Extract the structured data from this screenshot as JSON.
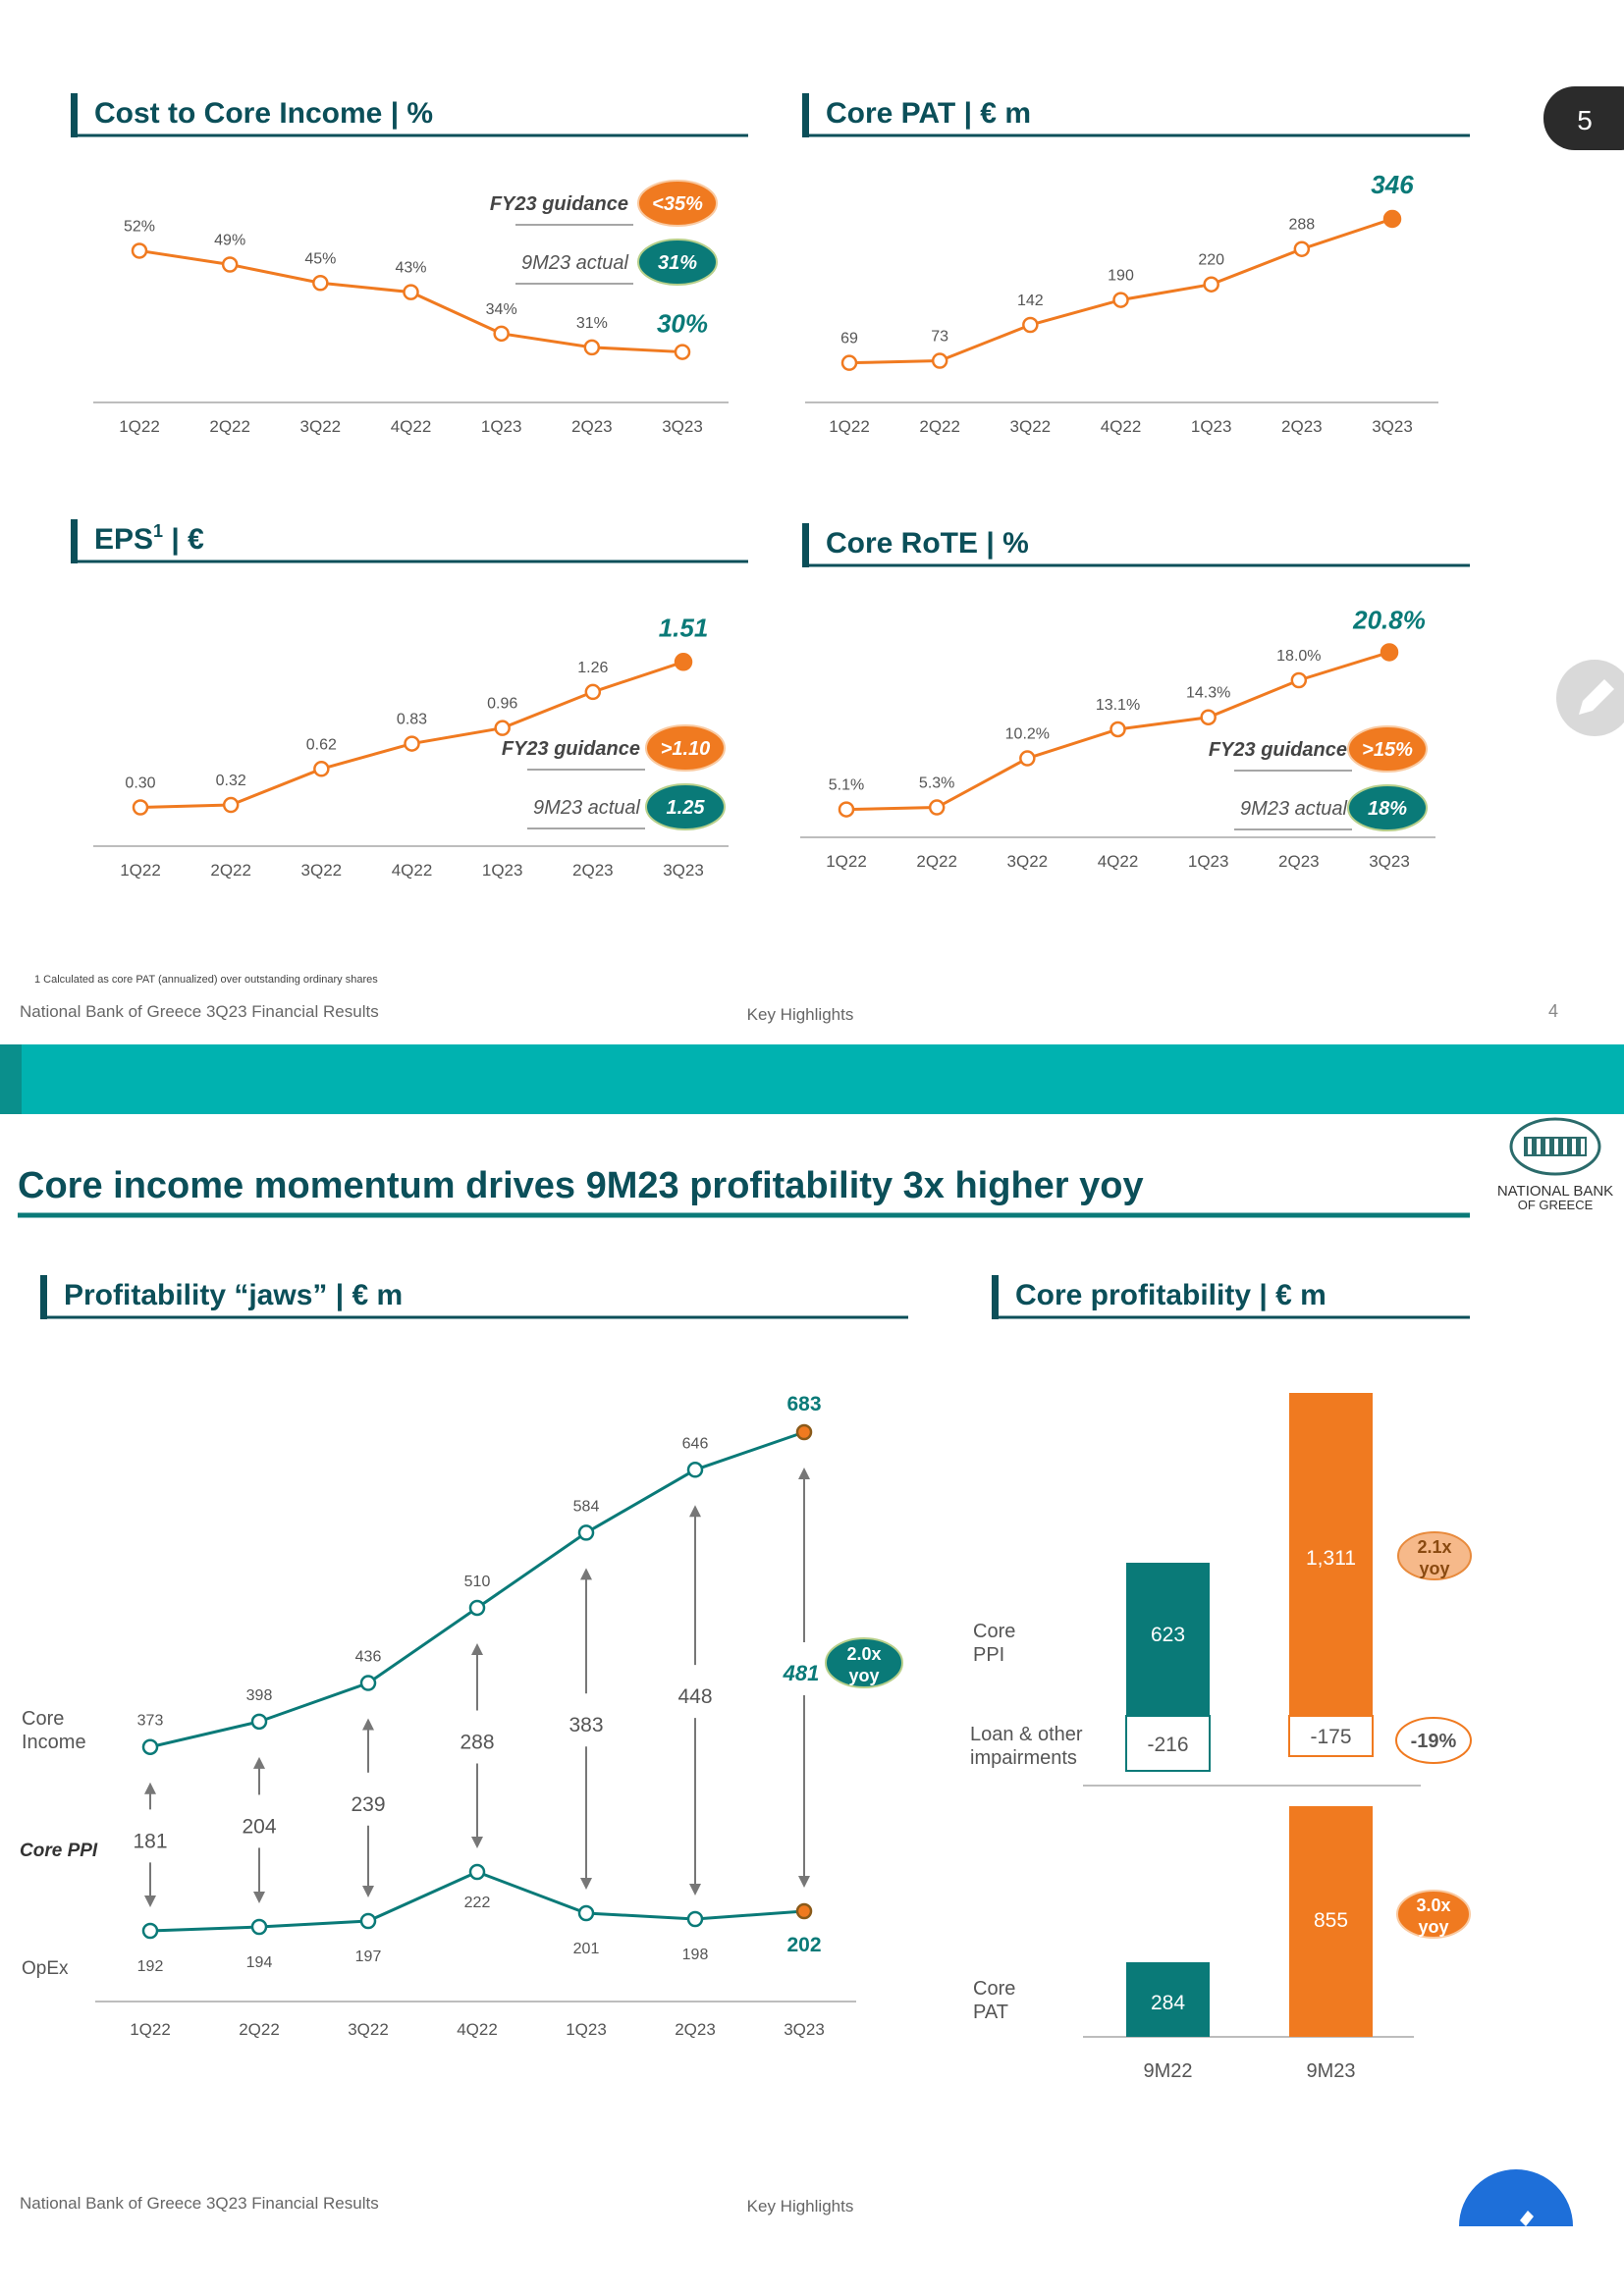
{
  "colors": {
    "orange": "#F07A20",
    "teal": "#0A7A78",
    "banner": "#00B2B0",
    "axis": "#BDBDBD",
    "grid": "#C8C8C8",
    "label": "#555555",
    "title": "#0B4F59"
  },
  "slide4": {
    "footer_left": "National Bank of Greece 3Q23 Financial Results",
    "footer_center": "Key Highlights",
    "page_number": "4",
    "footnote": "1 Calculated as core PAT (annualized) over outstanding ordinary shares",
    "page_badge": "5"
  },
  "slide5": {
    "title": "Core income momentum drives 9M23 profitability 3x higher yoy",
    "logo_text_1": "NATIONAL BANK",
    "logo_text_2": "OF GREECE",
    "footer_left": "National Bank of Greece 3Q23 Financial Results",
    "footer_center": "Key Highlights"
  },
  "chart_data": [
    {
      "id": "cost_core",
      "type": "line",
      "title": "Cost to Core Income | %",
      "categories": [
        "1Q22",
        "2Q22",
        "3Q22",
        "4Q22",
        "1Q23",
        "2Q23",
        "3Q23"
      ],
      "values": [
        52,
        49,
        45,
        43,
        34,
        31,
        30
      ],
      "labels": [
        "52%",
        "49%",
        "45%",
        "43%",
        "34%",
        "31%",
        "30%"
      ],
      "ylim": [
        25,
        57
      ],
      "annotations": [
        {
          "text": "FY23 guidance",
          "badge": "<35%",
          "style": "orange"
        },
        {
          "text": "9M23 actual",
          "badge": "31%",
          "style": "teal"
        }
      ]
    },
    {
      "id": "core_pat",
      "type": "line",
      "title": "Core PAT | € m",
      "categories": [
        "1Q22",
        "2Q22",
        "3Q22",
        "4Q22",
        "1Q23",
        "2Q23",
        "3Q23"
      ],
      "values": [
        69,
        73,
        142,
        190,
        220,
        288,
        346
      ],
      "labels": [
        "69",
        "73",
        "142",
        "190",
        "220",
        "288",
        "346"
      ],
      "ylim": [
        40,
        380
      ]
    },
    {
      "id": "eps",
      "type": "line",
      "title": "EPS",
      "title_sup": "1",
      "title_suffix": " | €",
      "categories": [
        "1Q22",
        "2Q22",
        "3Q22",
        "4Q22",
        "1Q23",
        "2Q23",
        "3Q23"
      ],
      "values": [
        0.3,
        0.32,
        0.62,
        0.83,
        0.96,
        1.26,
        1.51
      ],
      "labels": [
        "0.30",
        "0.32",
        "0.62",
        "0.83",
        "0.96",
        "1.26",
        "1.51"
      ],
      "ylim": [
        0.1,
        1.7
      ],
      "annotations": [
        {
          "text": "FY23 guidance",
          "badge": ">1.10",
          "style": "orange"
        },
        {
          "text": "9M23 actual",
          "badge": "1.25",
          "style": "teal"
        }
      ]
    },
    {
      "id": "core_rote",
      "type": "line",
      "title": "Core RoTE | %",
      "categories": [
        "1Q22",
        "2Q22",
        "3Q22",
        "4Q22",
        "1Q23",
        "2Q23",
        "3Q23"
      ],
      "values": [
        5.1,
        5.3,
        10.2,
        13.1,
        14.3,
        18.0,
        20.8
      ],
      "labels": [
        "5.1%",
        "5.3%",
        "10.2%",
        "13.1%",
        "14.3%",
        "18.0%",
        "20.8%"
      ],
      "ylim": [
        3,
        23
      ],
      "annotations": [
        {
          "text": "FY23 guidance",
          "badge": ">15%",
          "style": "orange"
        },
        {
          "text": "9M23 actual",
          "badge": "18%",
          "style": "teal"
        }
      ]
    },
    {
      "id": "jaws",
      "type": "line",
      "title": "Profitability “jaws” | € m",
      "categories": [
        "1Q22",
        "2Q22",
        "3Q22",
        "4Q22",
        "1Q23",
        "2Q23",
        "3Q23"
      ],
      "series": [
        {
          "name": "Core Income",
          "values": [
            373,
            398,
            436,
            510,
            584,
            646,
            683
          ]
        },
        {
          "name": "OpEx",
          "values": [
            192,
            194,
            197,
            222,
            201,
            198,
            202
          ]
        }
      ],
      "gap_label": "Core PPI",
      "gap_values": [
        181,
        204,
        239,
        288,
        383,
        448,
        481
      ],
      "badge": {
        "line1": "2.0x",
        "line2": "yoy"
      },
      "ylim": [
        120,
        720
      ]
    },
    {
      "id": "core_prof",
      "type": "bar",
      "title": "Core profitability | € m",
      "categories": [
        "9M22",
        "9M23"
      ],
      "row_labels": {
        "ppi": [
          "Core",
          "PPI"
        ],
        "impair": [
          "Loan & other",
          "impairments"
        ],
        "pat": [
          "Core",
          "PAT"
        ]
      },
      "series": [
        {
          "name": "Core PPI",
          "values": [
            623,
            1311
          ],
          "labels": [
            "623",
            "1,311"
          ]
        },
        {
          "name": "Loan & other impairments",
          "values": [
            -216,
            -175
          ],
          "labels": [
            "-216",
            "-175"
          ]
        },
        {
          "name": "Core PAT",
          "values": [
            284,
            855
          ],
          "labels": [
            "284",
            "855"
          ]
        }
      ],
      "badges": {
        "ppi": {
          "line1": "2.1x",
          "line2": "yoy"
        },
        "impair": {
          "line1": "-19%"
        },
        "pat": {
          "line1": "3.0x",
          "line2": "yoy"
        }
      }
    }
  ]
}
